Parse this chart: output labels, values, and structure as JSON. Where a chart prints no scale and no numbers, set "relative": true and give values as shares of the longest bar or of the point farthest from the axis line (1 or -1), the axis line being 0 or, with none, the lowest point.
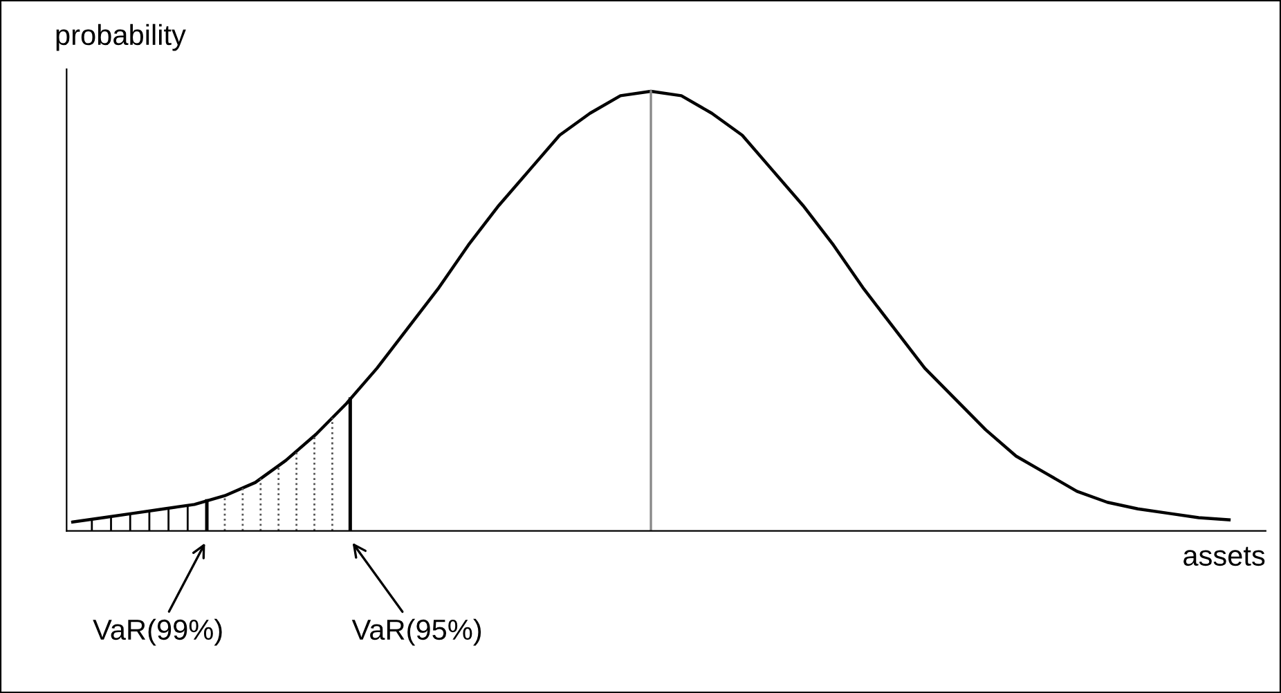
{
  "chart_data": {
    "type": "line",
    "relative": true,
    "xlabel": "assets",
    "ylabel": "probability",
    "categories": [
      null,
      null,
      null,
      null,
      null,
      null,
      null,
      null,
      null,
      null,
      null,
      null,
      null,
      null,
      null,
      null,
      null,
      null,
      null,
      null,
      null,
      null,
      null,
      null,
      null,
      null,
      null,
      null,
      null,
      null,
      null,
      null,
      null,
      null,
      null,
      null,
      null,
      null,
      null
    ],
    "tick_labels": false,
    "marker": "none",
    "line_style": "solid",
    "series": [
      {
        "color": "#000000",
        "values": [
          0.02,
          0.03,
          0.04,
          0.05,
          0.06,
          0.08,
          0.11,
          0.16,
          0.22,
          0.29,
          0.37,
          0.46,
          0.55,
          0.65,
          0.74,
          0.82,
          0.9,
          0.95,
          0.99,
          1,
          0.99,
          0.95,
          0.9,
          0.82,
          0.74,
          0.65,
          0.55,
          0.46,
          0.37,
          0.3,
          0.23,
          0.17,
          0.13,
          0.09,
          0.065,
          0.05,
          0.04,
          0.03,
          0.025
        ]
      }
    ],
    "annotations": [
      "VaR(99%)",
      "VaR(95%)"
    ]
  }
}
